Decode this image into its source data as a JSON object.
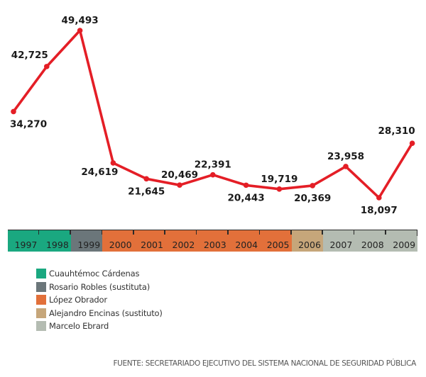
{
  "chart_data": {
    "type": "line",
    "title": "",
    "xlabel": "",
    "ylabel": "",
    "categories": [
      "1997",
      "1998",
      "1999",
      "2000",
      "2001",
      "2002",
      "2003",
      "2004",
      "2005",
      "2006",
      "2007",
      "2008",
      "2009"
    ],
    "values": [
      34270,
      42725,
      49493,
      24619,
      21645,
      20469,
      22391,
      20443,
      19719,
      20369,
      23958,
      18097,
      28310
    ],
    "value_labels": [
      "34,270",
      "42,725",
      "49,493",
      "24,619",
      "21,645",
      "20,469",
      "22,391",
      "20,443",
      "19,719",
      "20,369",
      "23,958",
      "18,097",
      "28,310"
    ],
    "label_positions": [
      "below",
      "above",
      "above",
      "below",
      "below",
      "above",
      "above",
      "below",
      "above",
      "below",
      "above",
      "below",
      "above"
    ],
    "ylim": [
      18097,
      49493
    ],
    "grid": false,
    "line_color": "#e41e26",
    "periods": [
      {
        "name": "Cuauhtémoc Cárdenas",
        "color": "#1aa880",
        "years": [
          "1997",
          "1998"
        ]
      },
      {
        "name": "Rosario Robles (sustituta)",
        "color": "#6b767a",
        "years": [
          "1999"
        ]
      },
      {
        "name": "López Obrador",
        "color": "#e2703a",
        "years": [
          "2000",
          "2001",
          "2002",
          "2003",
          "2004",
          "2005"
        ]
      },
      {
        "name": "Alejandro Encinas (sustituto)",
        "color": "#c6a67a",
        "years": [
          "2006"
        ]
      },
      {
        "name": "Marcelo Ebrard",
        "color": "#b4bcb2",
        "years": [
          "2007",
          "2008",
          "2009"
        ]
      }
    ],
    "legend_position": "bottom-left"
  },
  "source": "FUENTE: SECRETARIADO EJECUTIVO DEL SISTEMA NACIONAL DE SEGURIDAD PÚBLICA"
}
